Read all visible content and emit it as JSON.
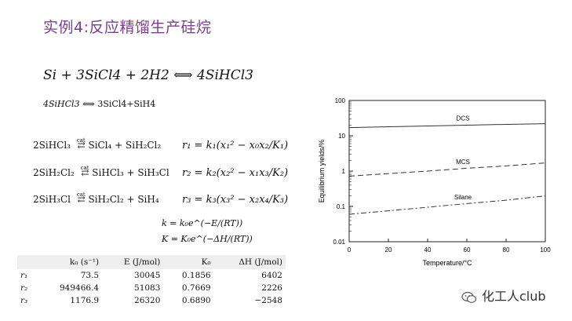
{
  "title": "实例4:反应精馏生产硅烷",
  "main_equation": "Si + 3SiCl4 + 2H2 ⟺ 4SiHCl3",
  "secondary_equation": {
    "lhs": "4SiHCl3",
    "arrow": "⟺",
    "rhs": "3SiCl4+SiH4"
  },
  "reactions": [
    {
      "lhs": "2SiHCl₃",
      "cat": "cat",
      "rhs": "SiCl₄ + SiH₂Cl₂",
      "rate": "r₁ = k₁(x₁² − x₀x₂/K₁)"
    },
    {
      "lhs": "2SiH₂Cl₂",
      "cat": "cat",
      "rhs": "SiHCl₃ + SiH₃Cl",
      "rate": "r₂ = k₂(x₂² − x₁x₃/K₂)"
    },
    {
      "lhs": "2SiH₃Cl",
      "cat": "cat",
      "rhs": "SiH₂Cl₂ + SiH₄",
      "rate": "r₃ = k₃(x₃² − x₂x₄/K₃)"
    }
  ],
  "k_equations": [
    "k = k₀e^(−E/(RT))",
    "K = K₀e^(−ΔH/(RT))"
  ],
  "table": {
    "headers": [
      "",
      "k₀ (s⁻¹)",
      "E (J/mol)",
      "K₀",
      "ΔH (J/mol)"
    ],
    "rows": [
      [
        "r₁",
        "73.5",
        "30045",
        "0.1856",
        "6402"
      ],
      [
        "r₂",
        "949466.4",
        "51083",
        "0.7669",
        "2226"
      ],
      [
        "r₃",
        "1176.9",
        "26320",
        "0.6890",
        "−2548"
      ]
    ]
  },
  "chart_data": {
    "type": "line",
    "xlabel": "Temperature/°C",
    "ylabel": "Equilibrium yields/%",
    "xlim": [
      0,
      100
    ],
    "ylim": [
      0.01,
      100
    ],
    "yscale": "log",
    "x_ticks": [
      "0",
      "20",
      "40",
      "60",
      "80",
      "100"
    ],
    "y_ticks": [
      "0.01",
      "0.1",
      "1",
      "10",
      "100"
    ],
    "grid": false,
    "series": [
      {
        "name": "DCS",
        "style": "solid",
        "x": [
          0,
          20,
          40,
          60,
          80,
          100
        ],
        "y": [
          17,
          18,
          19,
          20,
          21,
          22
        ]
      },
      {
        "name": "MCS",
        "style": "dashed",
        "x": [
          0,
          20,
          40,
          60,
          80,
          100
        ],
        "y": [
          0.72,
          0.85,
          1.0,
          1.2,
          1.4,
          1.7
        ]
      },
      {
        "name": "Silane",
        "style": "dashdot",
        "x": [
          0,
          20,
          40,
          60,
          80,
          100
        ],
        "y": [
          0.06,
          0.075,
          0.095,
          0.12,
          0.15,
          0.2
        ]
      }
    ]
  },
  "footer": {
    "icon": "wechat-icon",
    "text": "化工人club"
  }
}
